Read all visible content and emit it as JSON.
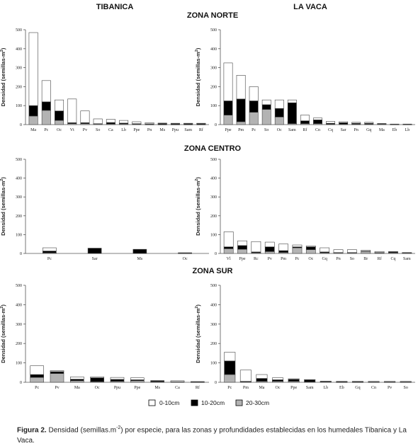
{
  "headers": {
    "left": "TIBANICA",
    "right": "LA VACA",
    "zones": [
      "ZONA NORTE",
      "ZONA CENTRO",
      "ZONA SUR"
    ]
  },
  "y_axis_label": "Densidad (semillas-m",
  "y_axis_label_sup": "2",
  "legend": [
    {
      "label": "0-10cm",
      "color": "#ffffff"
    },
    {
      "label": "10-20cm",
      "color": "#000000"
    },
    {
      "label": "20-30cm",
      "color": "#b3b3b3"
    }
  ],
  "caption": {
    "label": "Figura 2.",
    "text_pre": " Densidad (semillas.m",
    "sup": "-2",
    "text_post": ") por especie, para las zonas y profundidades establecidas en los humedales Tibanica y La Vaca."
  },
  "chart_data": [
    {
      "type": "bar",
      "stacked": true,
      "wetland": "TIBANICA",
      "zone": "ZONA NORTE",
      "ylim": [
        0,
        500
      ],
      "yticks": [
        0,
        100,
        200,
        300,
        400,
        500
      ],
      "grid": false,
      "categories": [
        "Ma",
        "Pc",
        "Oc",
        "Vt",
        "Pv",
        "So",
        "Ca",
        "Lb",
        "Ppe",
        "Pn",
        "Ms",
        "Ppu",
        "Sam",
        "Rf"
      ],
      "series": [
        {
          "name": "20-30cm",
          "values": [
            45,
            75,
            22,
            5,
            5,
            3,
            3,
            3,
            2,
            1,
            1,
            1,
            1,
            1
          ]
        },
        {
          "name": "10-20cm",
          "values": [
            55,
            45,
            50,
            5,
            5,
            2,
            8,
            5,
            3,
            3,
            5,
            5,
            5,
            5
          ]
        },
        {
          "name": "0-10cm",
          "values": [
            385,
            112,
            58,
            125,
            62,
            25,
            17,
            14,
            10,
            6,
            2,
            1,
            1,
            1
          ]
        }
      ]
    },
    {
      "type": "bar",
      "stacked": true,
      "wetland": "LA VACA",
      "zone": "ZONA NORTE",
      "ylim": [
        0,
        500
      ],
      "yticks": [
        0,
        100,
        200,
        300,
        400,
        500
      ],
      "grid": false,
      "categories": [
        "Ppe",
        "Pm",
        "Pc",
        "So",
        "Oc",
        "Sam",
        "Rf",
        "Cn",
        "Cq",
        "Sar",
        "Pn",
        "Gq",
        "Ma",
        "Eb",
        "Lb"
      ],
      "series": [
        {
          "name": "20-30cm",
          "values": [
            50,
            15,
            65,
            80,
            40,
            5,
            5,
            5,
            2,
            2,
            2,
            2,
            2,
            1,
            1
          ]
        },
        {
          "name": "10-20cm",
          "values": [
            75,
            120,
            60,
            25,
            45,
            110,
            15,
            20,
            5,
            8,
            5,
            5,
            2,
            1,
            1
          ]
        },
        {
          "name": "0-10cm",
          "values": [
            200,
            125,
            75,
            25,
            45,
            15,
            30,
            10,
            10,
            5,
            5,
            5,
            2,
            1,
            1
          ]
        }
      ]
    },
    {
      "type": "bar",
      "stacked": true,
      "wetland": "TIBANICA",
      "zone": "ZONA CENTRO",
      "ylim": [
        0,
        500
      ],
      "yticks": [
        0,
        100,
        200,
        300,
        400,
        500
      ],
      "grid": false,
      "categories": [
        "Pc",
        "Sar",
        "Ms",
        "Oc"
      ],
      "series": [
        {
          "name": "20-30cm",
          "values": [
            3,
            0,
            0,
            1
          ]
        },
        {
          "name": "10-20cm",
          "values": [
            10,
            28,
            22,
            1
          ]
        },
        {
          "name": "0-10cm",
          "values": [
            17,
            0,
            0,
            2
          ]
        }
      ]
    },
    {
      "type": "bar",
      "stacked": true,
      "wetland": "LA VACA",
      "zone": "ZONA CENTRO",
      "ylim": [
        0,
        500
      ],
      "yticks": [
        0,
        100,
        200,
        300,
        400,
        500
      ],
      "grid": false,
      "categories": [
        "Vl",
        "Ppe",
        "Rc",
        "Pv",
        "Pm",
        "Pc",
        "Oc",
        "Gq",
        "Pn",
        "So",
        "Br",
        "Rf",
        "Cq",
        "Sam"
      ],
      "series": [
        {
          "name": "20-30cm",
          "values": [
            25,
            22,
            3,
            10,
            5,
            30,
            20,
            3,
            3,
            3,
            10,
            3,
            3,
            2
          ]
        },
        {
          "name": "10-20cm",
          "values": [
            10,
            20,
            5,
            25,
            10,
            5,
            15,
            5,
            2,
            2,
            2,
            2,
            5,
            1
          ]
        },
        {
          "name": "0-10cm",
          "values": [
            80,
            25,
            55,
            25,
            35,
            10,
            5,
            22,
            15,
            15,
            5,
            5,
            2,
            2
          ]
        }
      ]
    },
    {
      "type": "bar",
      "stacked": true,
      "wetland": "TIBANICA",
      "zone": "ZONA SUR",
      "ylim": [
        0,
        500
      ],
      "yticks": [
        0,
        100,
        200,
        300,
        400,
        500
      ],
      "grid": false,
      "categories": [
        "Pc",
        "Pv",
        "Ma",
        "Oc",
        "Ppu",
        "Ppe",
        "Ms",
        "Ca",
        "Rf"
      ],
      "series": [
        {
          "name": "20-30cm",
          "values": [
            25,
            45,
            8,
            3,
            5,
            8,
            2,
            2,
            1
          ]
        },
        {
          "name": "10-20cm",
          "values": [
            15,
            10,
            8,
            20,
            10,
            5,
            5,
            1,
            1
          ]
        },
        {
          "name": "0-10cm",
          "values": [
            45,
            5,
            12,
            5,
            10,
            10,
            2,
            5,
            2
          ]
        }
      ]
    },
    {
      "type": "bar",
      "stacked": true,
      "wetland": "LA VACA",
      "zone": "ZONA SUR",
      "ylim": [
        0,
        500
      ],
      "yticks": [
        0,
        100,
        200,
        300,
        400,
        500
      ],
      "grid": false,
      "categories": [
        "Pc",
        "Pm",
        "Ma",
        "Oc",
        "Ppe",
        "Sam",
        "Lb",
        "Eb",
        "Gq",
        "Cn",
        "Pv",
        "So"
      ],
      "series": [
        {
          "name": "20-30cm",
          "values": [
            40,
            2,
            5,
            5,
            5,
            2,
            2,
            1,
            1,
            1,
            1,
            1
          ]
        },
        {
          "name": "10-20cm",
          "values": [
            70,
            3,
            15,
            8,
            10,
            10,
            2,
            2,
            2,
            1,
            1,
            1
          ]
        },
        {
          "name": "0-10cm",
          "values": [
            45,
            58,
            20,
            10,
            3,
            2,
            2,
            2,
            2,
            3,
            3,
            3
          ]
        }
      ]
    }
  ]
}
